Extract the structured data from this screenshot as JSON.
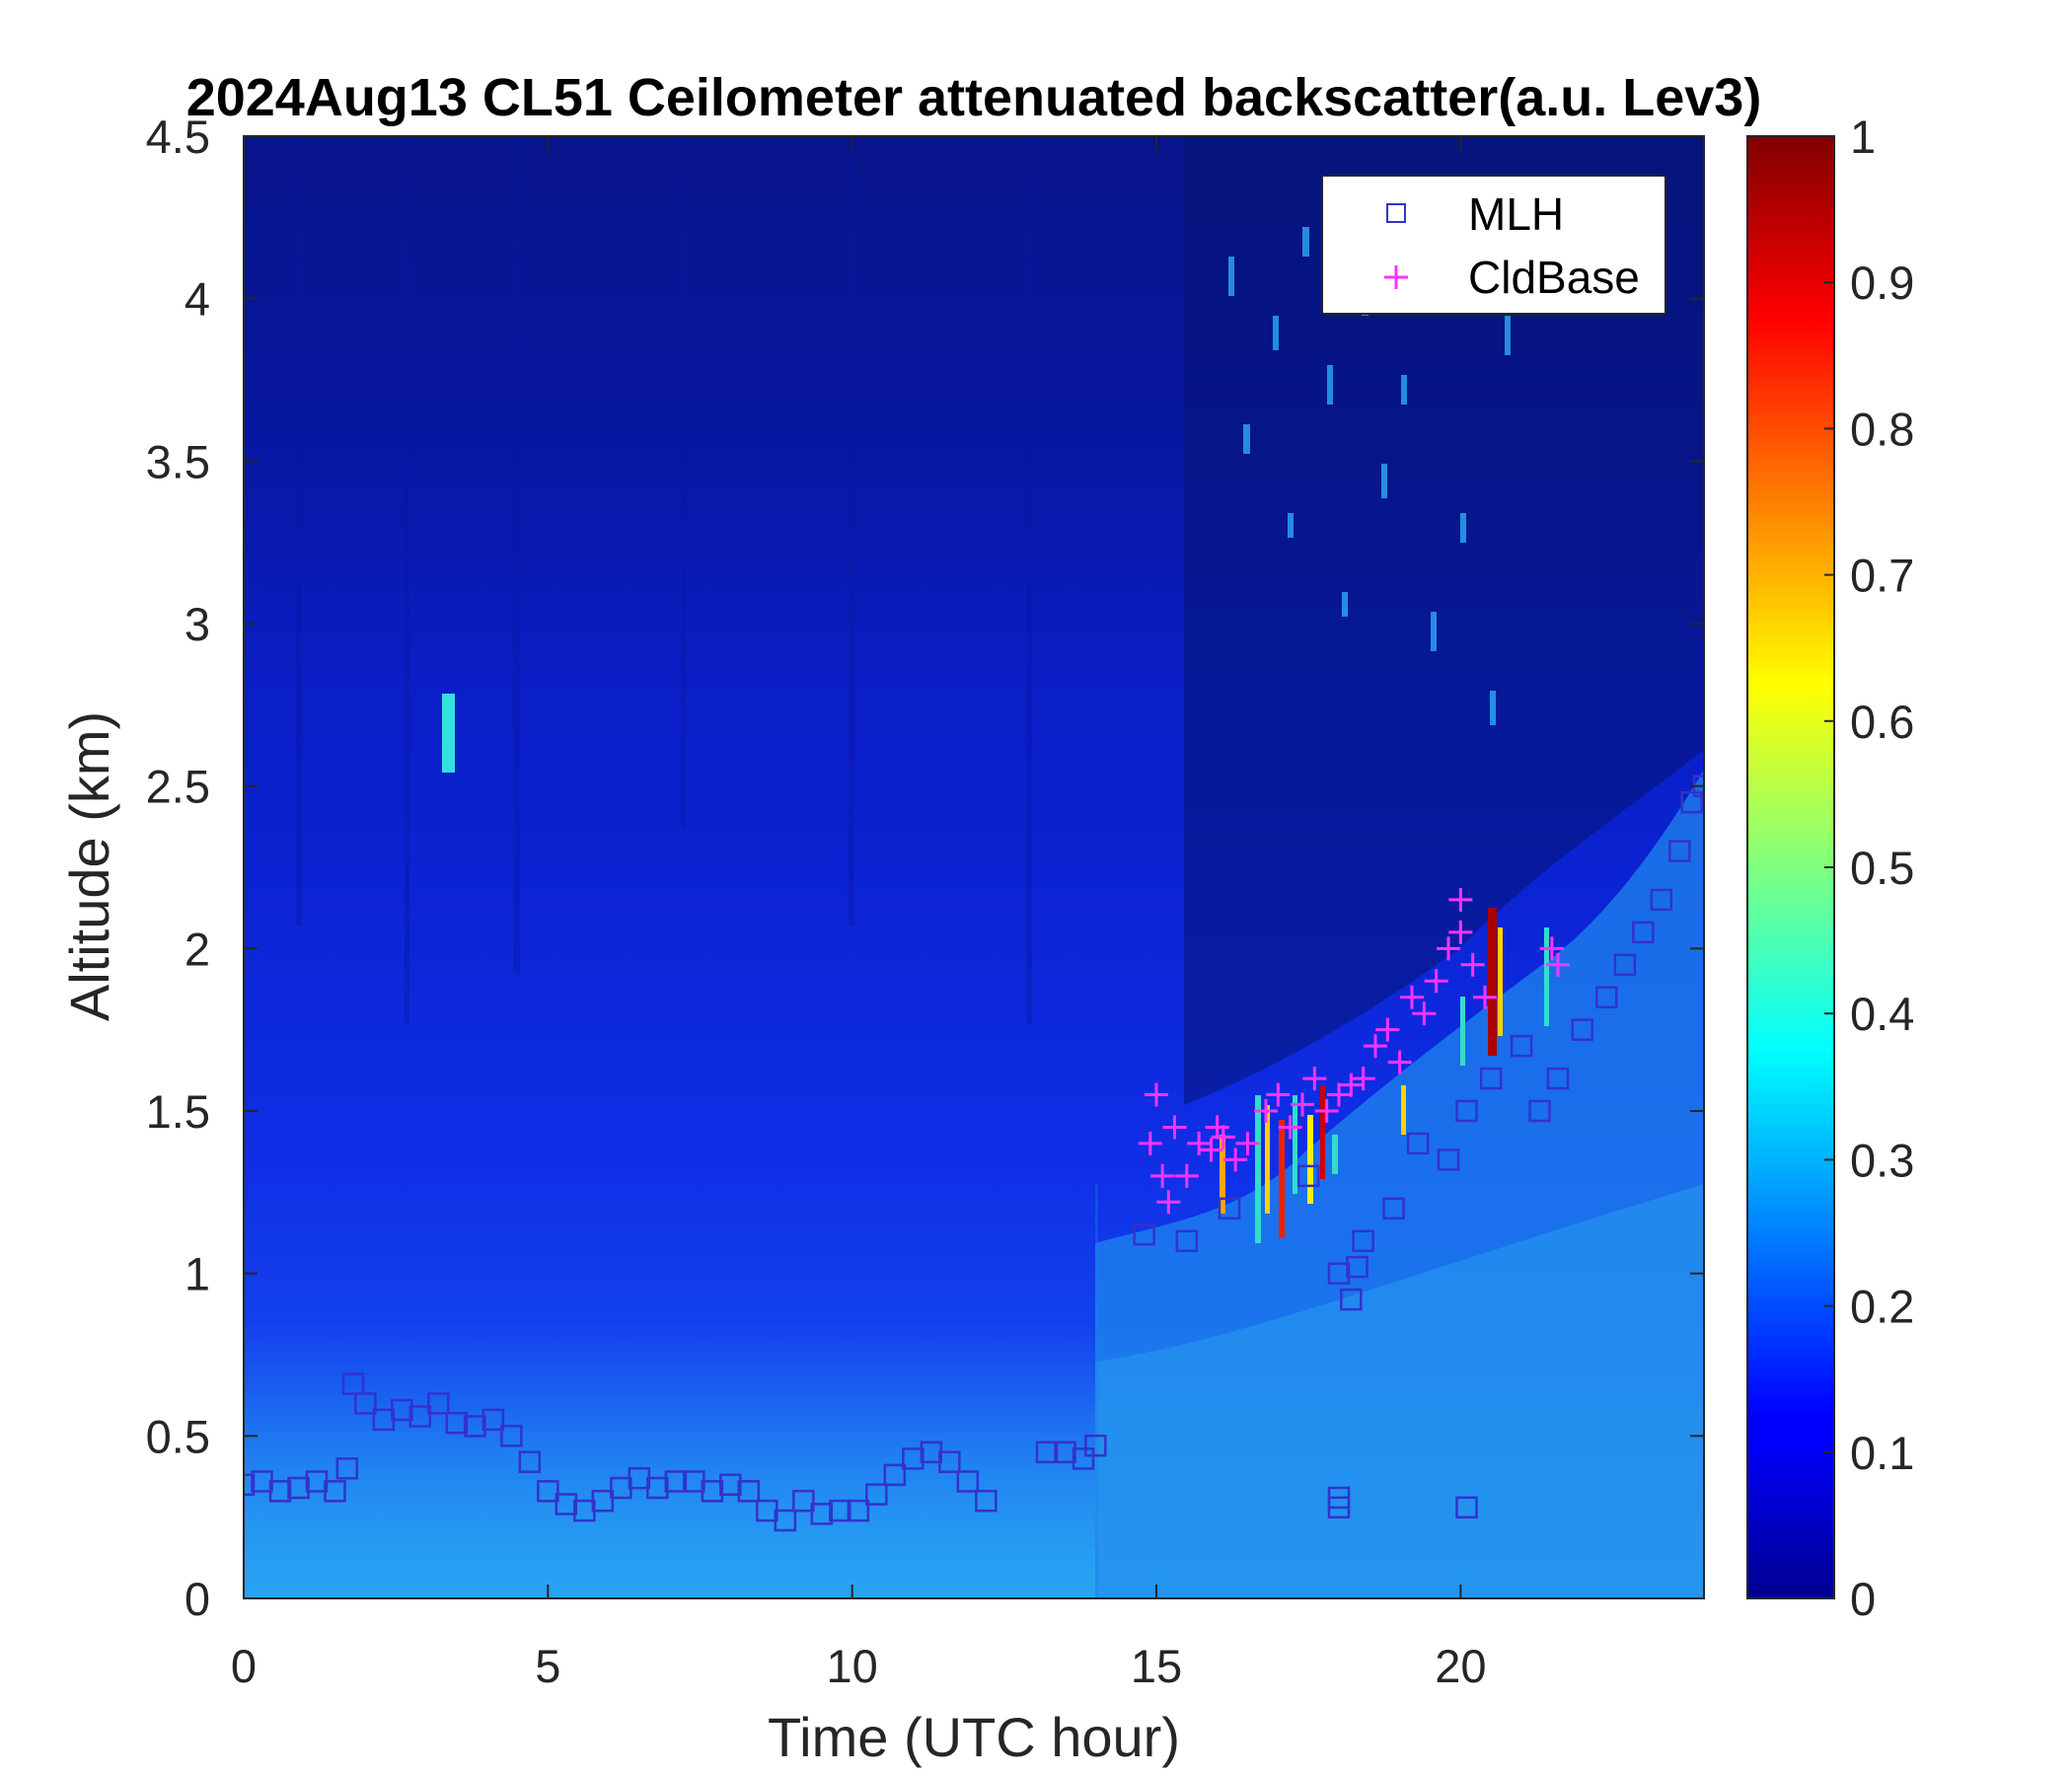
{
  "chart_data": {
    "type": "heatmap",
    "title": "2024Aug13 CL51 Ceilometer attenuated backscatter(a.u. Lev3)",
    "xlabel": "Time (UTC hour)",
    "ylabel": "Altitude (km)",
    "xlim": [
      0,
      24
    ],
    "ylim": [
      0,
      4.5
    ],
    "x_ticks": [
      "0",
      "5",
      "10",
      "15",
      "20"
    ],
    "x_tick_values": [
      0,
      5,
      10,
      15,
      20
    ],
    "y_ticks": [
      "0",
      "0.5",
      "1",
      "1.5",
      "2",
      "2.5",
      "3",
      "3.5",
      "4",
      "4.5"
    ],
    "y_tick_values": [
      0,
      0.5,
      1,
      1.5,
      2,
      2.5,
      3,
      3.5,
      4,
      4.5
    ],
    "colorbar": {
      "range": [
        0,
        1
      ],
      "ticks": [
        "0",
        "0.1",
        "0.2",
        "0.3",
        "0.4",
        "0.5",
        "0.6",
        "0.7",
        "0.8",
        "0.9",
        "1"
      ],
      "tick_values": [
        0,
        0.1,
        0.2,
        0.3,
        0.4,
        0.5,
        0.6,
        0.7,
        0.8,
        0.9,
        1.0
      ],
      "colormap": "jet"
    },
    "legend": {
      "position": "top-right",
      "entries": [
        {
          "label": "MLH",
          "marker": "square",
          "color": "#3333cc"
        },
        {
          "label": "CldBase",
          "marker": "plus",
          "color": "#ff33ff"
        }
      ]
    },
    "series": [
      {
        "name": "MLH",
        "marker": "square",
        "color": "#3333cc",
        "x": [
          0,
          0.3,
          0.6,
          0.9,
          1.2,
          1.5,
          1.7,
          1.8,
          2.0,
          2.3,
          2.6,
          2.9,
          3.2,
          3.5,
          3.8,
          4.1,
          4.4,
          4.7,
          5.0,
          5.3,
          5.6,
          5.9,
          6.2,
          6.5,
          6.8,
          7.1,
          7.4,
          7.7,
          8.0,
          8.3,
          8.6,
          8.9,
          9.2,
          9.5,
          9.8,
          10.1,
          10.4,
          10.7,
          11.0,
          11.3,
          11.6,
          11.9,
          12.2,
          13.2,
          13.5,
          13.8,
          14.0,
          14.8,
          15.5,
          16.2,
          17.5,
          18.0,
          18.2,
          18.4,
          18.9,
          19.3,
          19.8,
          20.1,
          20.5,
          21.0,
          21.3,
          21.6,
          22.0,
          22.4,
          22.7,
          23.0,
          23.3,
          23.6,
          23.8,
          24.0,
          18.0,
          20.1,
          18.0,
          18.3
        ],
        "y": [
          0.35,
          0.36,
          0.33,
          0.34,
          0.36,
          0.33,
          0.4,
          0.66,
          0.6,
          0.55,
          0.58,
          0.56,
          0.6,
          0.54,
          0.53,
          0.55,
          0.5,
          0.42,
          0.33,
          0.29,
          0.27,
          0.3,
          0.34,
          0.37,
          0.34,
          0.36,
          0.36,
          0.33,
          0.35,
          0.33,
          0.27,
          0.24,
          0.3,
          0.26,
          0.27,
          0.27,
          0.32,
          0.38,
          0.43,
          0.45,
          0.42,
          0.36,
          0.3,
          0.45,
          0.45,
          0.43,
          0.47,
          1.12,
          1.1,
          1.2,
          1.3,
          1.0,
          0.92,
          1.1,
          1.2,
          1.4,
          1.35,
          1.5,
          1.6,
          1.7,
          1.5,
          1.6,
          1.75,
          1.85,
          1.95,
          2.05,
          2.15,
          2.3,
          2.45,
          2.5,
          0.28,
          0.28,
          0.31,
          1.02
        ]
      },
      {
        "name": "CldBase",
        "marker": "plus",
        "color": "#ff33ff",
        "x": [
          14.9,
          15.0,
          15.1,
          15.2,
          15.3,
          15.5,
          15.7,
          15.9,
          16.0,
          16.1,
          16.3,
          16.5,
          16.8,
          17.0,
          17.2,
          17.4,
          17.6,
          17.8,
          18.0,
          18.2,
          18.4,
          18.6,
          18.8,
          19.0,
          19.2,
          19.4,
          19.6,
          19.8,
          20.0,
          20.2,
          20.4,
          20.0,
          21.5,
          21.6
        ],
        "y": [
          1.4,
          1.55,
          1.3,
          1.22,
          1.45,
          1.3,
          1.4,
          1.38,
          1.45,
          1.42,
          1.35,
          1.4,
          1.5,
          1.55,
          1.45,
          1.52,
          1.6,
          1.5,
          1.55,
          1.58,
          1.6,
          1.7,
          1.75,
          1.65,
          1.85,
          1.8,
          1.9,
          2.0,
          2.05,
          1.95,
          1.85,
          2.15,
          2.0,
          1.95
        ]
      }
    ]
  }
}
